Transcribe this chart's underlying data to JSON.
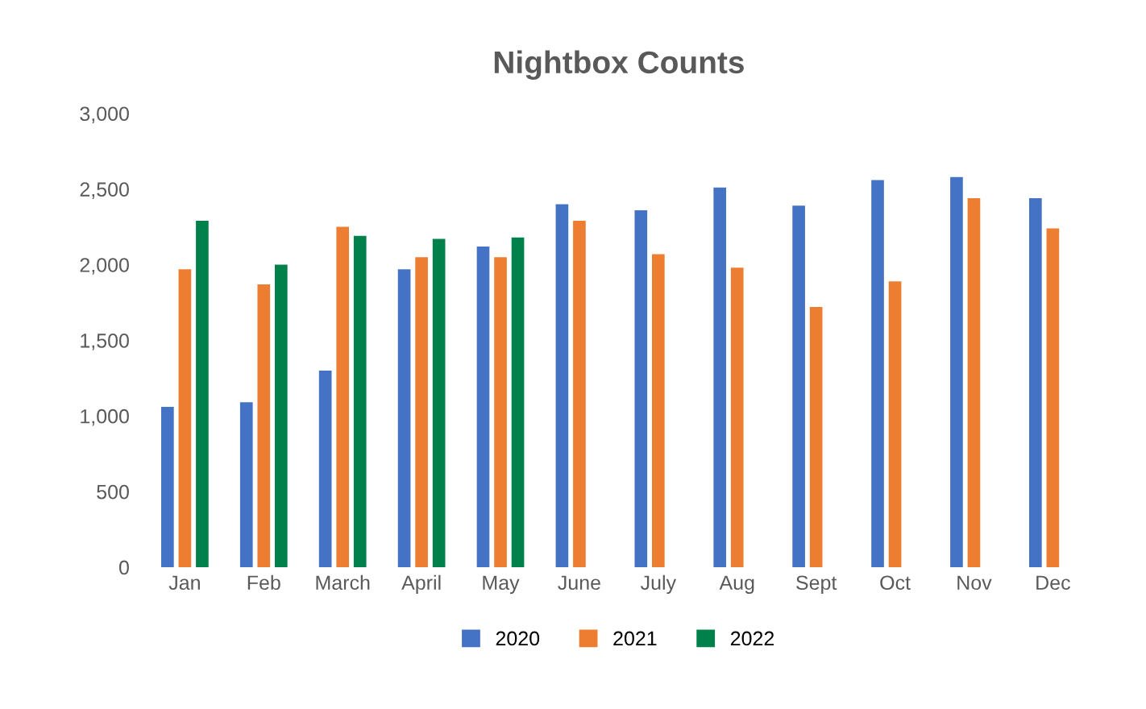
{
  "chart_data": {
    "type": "bar",
    "title": "Nightbox Counts",
    "categories": [
      "Jan",
      "Feb",
      "March",
      "April",
      "May",
      "June",
      "July",
      "Aug",
      "Sept",
      "Oct",
      "Nov",
      "Dec"
    ],
    "series": [
      {
        "name": "2020",
        "color": "#4472c4",
        "values": [
          1060,
          1090,
          1300,
          1970,
          2120,
          2400,
          2360,
          2510,
          2390,
          2560,
          2580,
          2440
        ]
      },
      {
        "name": "2021",
        "color": "#ed7d31",
        "values": [
          1970,
          1870,
          2250,
          2050,
          2050,
          2290,
          2070,
          1980,
          1720,
          1890,
          2440,
          2240
        ]
      },
      {
        "name": "2022",
        "color": "#00804a",
        "values": [
          2290,
          2000,
          2190,
          2170,
          2180,
          null,
          null,
          null,
          null,
          null,
          null,
          null
        ]
      }
    ],
    "ylim": [
      0,
      3000
    ],
    "yticks": [
      {
        "value": 0,
        "label": "0"
      },
      {
        "value": 500,
        "label": "500"
      },
      {
        "value": 1000,
        "label": "1,000"
      },
      {
        "value": 1500,
        "label": "1,500"
      },
      {
        "value": 2000,
        "label": "2,000"
      },
      {
        "value": 2500,
        "label": "2,500"
      },
      {
        "value": 3000,
        "label": "3,000"
      }
    ],
    "grid": false,
    "legend": "bottom"
  }
}
